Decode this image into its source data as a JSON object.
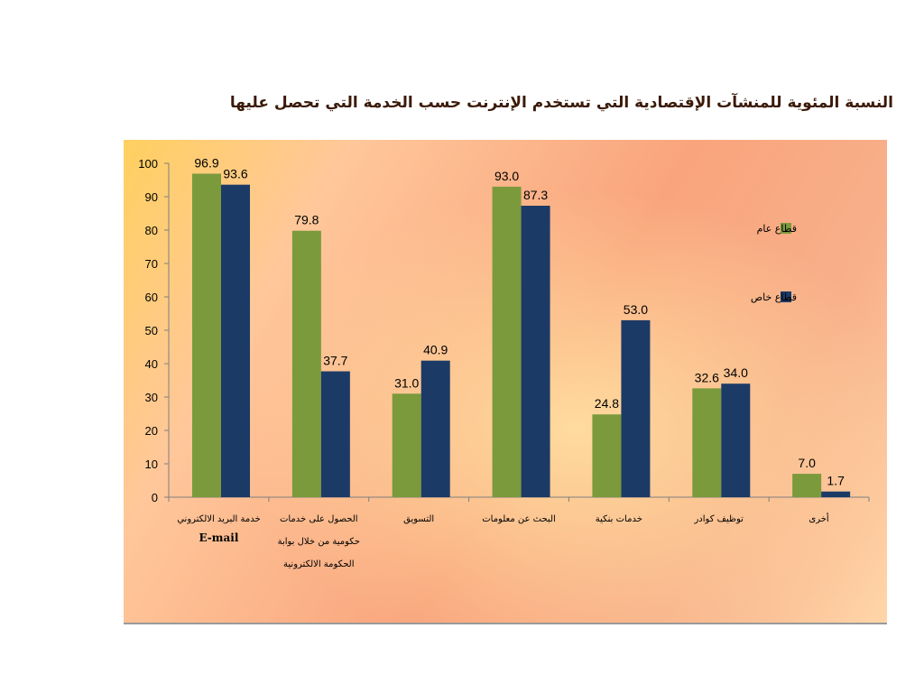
{
  "title": "النسبة المئوية للمنشآت الإقتصادية التي تستخدم الإنترنت حسب الخدمة التي تحصل عليها",
  "chart_data": {
    "type": "bar",
    "categories": [
      {
        "label": "خدمة البريد الالكتروني",
        "sub": "E-mail"
      },
      {
        "label": "الحصول على خدمات حكومية من خلال بوابة الحكومة الالكترونية",
        "sub": ""
      },
      {
        "label": "التسويق",
        "sub": ""
      },
      {
        "label": "البحث عن معلومات",
        "sub": ""
      },
      {
        "label": "خدمات بنكية",
        "sub": ""
      },
      {
        "label": "توظيف كوادر",
        "sub": ""
      },
      {
        "label": "أخرى",
        "sub": ""
      }
    ],
    "series": [
      {
        "name": "قطاع عام",
        "color": "#7a9a3c",
        "values": [
          96.9,
          79.8,
          31.0,
          93.0,
          24.8,
          32.6,
          7.0
        ]
      },
      {
        "name": "قطاع خاص",
        "color": "#1c3a66",
        "values": [
          93.6,
          37.7,
          40.9,
          87.3,
          53.0,
          34.0,
          1.7
        ]
      }
    ],
    "ylim": [
      0,
      100
    ],
    "yticks": [
      0,
      10,
      20,
      30,
      40,
      50,
      60,
      70,
      80,
      90,
      100
    ],
    "grid": false,
    "legend": "right"
  }
}
